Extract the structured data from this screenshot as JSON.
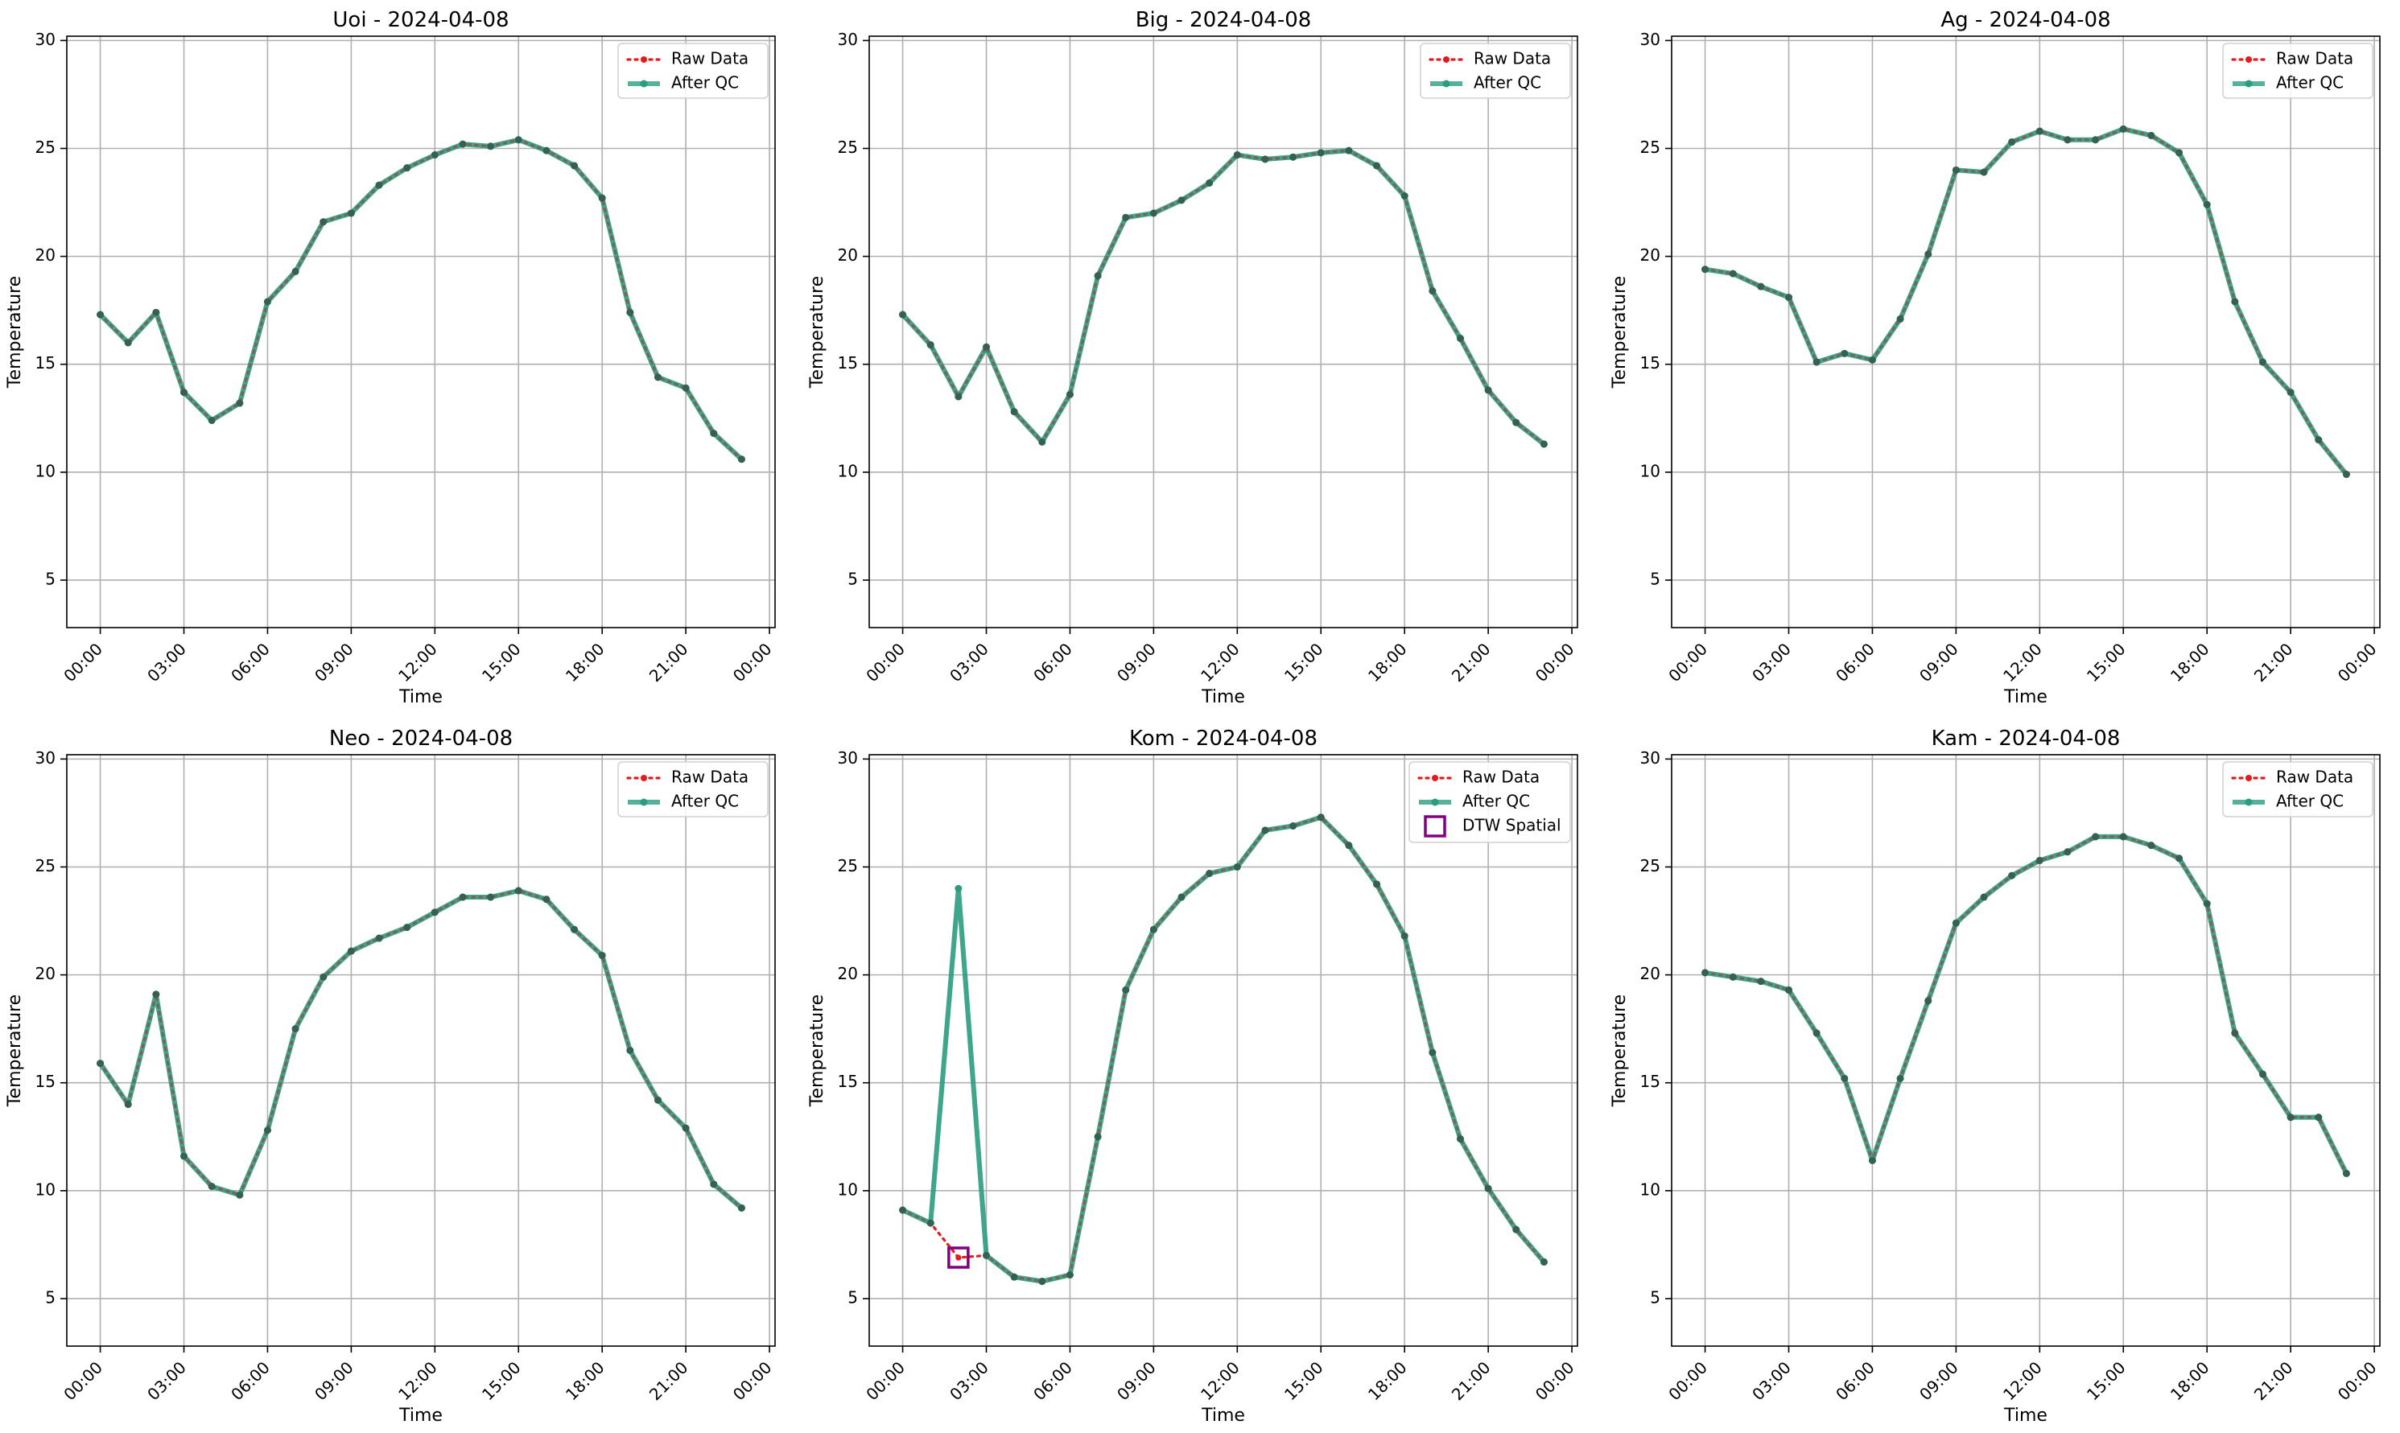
{
  "colors": {
    "raw": "#e41a1c",
    "qc": "#2a9d7f",
    "dtw": "#800080",
    "grid": "#b0b0b0"
  },
  "legend_labels": {
    "raw": "Raw Data",
    "qc": "After QC",
    "dtw": "DTW Spatial"
  },
  "chart_data": [
    {
      "type": "line",
      "title": "Uoi - 2024-04-08",
      "xlabel": "Time",
      "ylabel": "Temperature",
      "ylim": [
        2.8,
        30.2
      ],
      "xlim": [
        -1.2,
        24.2
      ],
      "x_ticks": [
        0,
        3,
        6,
        9,
        12,
        15,
        18,
        21,
        24
      ],
      "x_tick_labels": [
        "00:00",
        "03:00",
        "06:00",
        "09:00",
        "12:00",
        "15:00",
        "18:00",
        "21:00",
        "00:00"
      ],
      "y_ticks": [
        5,
        10,
        15,
        20,
        25,
        30
      ],
      "grid": true,
      "legend": "top-right",
      "x": [
        0,
        1,
        2,
        3,
        4,
        5,
        6,
        7,
        8,
        9,
        10,
        11,
        12,
        13,
        14,
        15,
        16,
        17,
        18,
        19,
        20,
        21,
        22,
        23
      ],
      "series": [
        {
          "name": "Raw Data",
          "values": [
            17.3,
            16.0,
            17.4,
            13.7,
            12.4,
            13.2,
            17.9,
            19.3,
            21.6,
            22.0,
            23.3,
            24.1,
            24.7,
            25.2,
            25.1,
            25.4,
            24.9,
            24.2,
            22.7,
            17.4,
            14.4,
            13.9,
            11.8,
            10.6
          ]
        },
        {
          "name": "After QC",
          "values": [
            17.3,
            16.0,
            17.4,
            13.7,
            12.4,
            13.2,
            17.9,
            19.3,
            21.6,
            22.0,
            23.3,
            24.1,
            24.7,
            25.2,
            25.1,
            25.4,
            24.9,
            24.2,
            22.7,
            17.4,
            14.4,
            13.9,
            11.8,
            10.6
          ]
        }
      ]
    },
    {
      "type": "line",
      "title": "Big - 2024-04-08",
      "xlabel": "Time",
      "ylabel": "Temperature",
      "ylim": [
        2.8,
        30.2
      ],
      "xlim": [
        -1.2,
        24.2
      ],
      "x_ticks": [
        0,
        3,
        6,
        9,
        12,
        15,
        18,
        21,
        24
      ],
      "x_tick_labels": [
        "00:00",
        "03:00",
        "06:00",
        "09:00",
        "12:00",
        "15:00",
        "18:00",
        "21:00",
        "00:00"
      ],
      "y_ticks": [
        5,
        10,
        15,
        20,
        25,
        30
      ],
      "grid": true,
      "legend": "top-right",
      "x": [
        0,
        1,
        2,
        3,
        4,
        5,
        6,
        7,
        8,
        9,
        10,
        11,
        12,
        13,
        14,
        15,
        16,
        17,
        18,
        19,
        20,
        21,
        22,
        23
      ],
      "series": [
        {
          "name": "Raw Data",
          "values": [
            17.3,
            15.9,
            13.5,
            15.8,
            12.8,
            11.4,
            13.6,
            19.1,
            21.8,
            22.0,
            22.6,
            23.4,
            24.7,
            24.5,
            24.6,
            24.8,
            24.9,
            24.2,
            22.8,
            18.4,
            16.2,
            13.8,
            12.3,
            11.3
          ]
        },
        {
          "name": "After QC",
          "values": [
            17.3,
            15.9,
            13.5,
            15.8,
            12.8,
            11.4,
            13.6,
            19.1,
            21.8,
            22.0,
            22.6,
            23.4,
            24.7,
            24.5,
            24.6,
            24.8,
            24.9,
            24.2,
            22.8,
            18.4,
            16.2,
            13.8,
            12.3,
            11.3
          ]
        }
      ]
    },
    {
      "type": "line",
      "title": "Ag - 2024-04-08",
      "xlabel": "Time",
      "ylabel": "Temperature",
      "ylim": [
        2.8,
        30.2
      ],
      "xlim": [
        -1.2,
        24.2
      ],
      "x_ticks": [
        0,
        3,
        6,
        9,
        12,
        15,
        18,
        21,
        24
      ],
      "x_tick_labels": [
        "00:00",
        "03:00",
        "06:00",
        "09:00",
        "12:00",
        "15:00",
        "18:00",
        "21:00",
        "00:00"
      ],
      "y_ticks": [
        5,
        10,
        15,
        20,
        25,
        30
      ],
      "grid": true,
      "legend": "top-right",
      "x": [
        0,
        1,
        2,
        3,
        4,
        5,
        6,
        7,
        8,
        9,
        10,
        11,
        12,
        13,
        14,
        15,
        16,
        17,
        18,
        19,
        20,
        21,
        22,
        23
      ],
      "series": [
        {
          "name": "Raw Data",
          "values": [
            19.4,
            19.2,
            18.6,
            18.1,
            15.1,
            15.5,
            15.2,
            17.1,
            20.1,
            24.0,
            23.9,
            25.3,
            25.8,
            25.4,
            25.4,
            25.9,
            25.6,
            24.8,
            22.4,
            17.9,
            15.1,
            13.7,
            11.5,
            9.9
          ]
        },
        {
          "name": "After QC",
          "values": [
            19.4,
            19.2,
            18.6,
            18.1,
            15.1,
            15.5,
            15.2,
            17.1,
            20.1,
            24.0,
            23.9,
            25.3,
            25.8,
            25.4,
            25.4,
            25.9,
            25.6,
            24.8,
            22.4,
            17.9,
            15.1,
            13.7,
            11.5,
            9.9
          ]
        }
      ]
    },
    {
      "type": "line",
      "title": "Neo - 2024-04-08",
      "xlabel": "Time",
      "ylabel": "Temperature",
      "ylim": [
        2.8,
        30.2
      ],
      "xlim": [
        -1.2,
        24.2
      ],
      "x_ticks": [
        0,
        3,
        6,
        9,
        12,
        15,
        18,
        21,
        24
      ],
      "x_tick_labels": [
        "00:00",
        "03:00",
        "06:00",
        "09:00",
        "12:00",
        "15:00",
        "18:00",
        "21:00",
        "00:00"
      ],
      "y_ticks": [
        5,
        10,
        15,
        20,
        25,
        30
      ],
      "grid": true,
      "legend": "top-right",
      "x": [
        0,
        1,
        2,
        3,
        4,
        5,
        6,
        7,
        8,
        9,
        10,
        11,
        12,
        13,
        14,
        15,
        16,
        17,
        18,
        19,
        20,
        21,
        22,
        23
      ],
      "series": [
        {
          "name": "Raw Data",
          "values": [
            15.9,
            14.0,
            19.1,
            11.6,
            10.2,
            9.8,
            12.8,
            17.5,
            19.9,
            21.1,
            21.7,
            22.2,
            22.9,
            23.6,
            23.6,
            23.9,
            23.5,
            22.1,
            20.9,
            16.5,
            14.2,
            12.9,
            10.3,
            9.2
          ]
        },
        {
          "name": "After QC",
          "values": [
            15.9,
            14.0,
            19.1,
            11.6,
            10.2,
            9.8,
            12.8,
            17.5,
            19.9,
            21.1,
            21.7,
            22.2,
            22.9,
            23.6,
            23.6,
            23.9,
            23.5,
            22.1,
            20.9,
            16.5,
            14.2,
            12.9,
            10.3,
            9.2
          ]
        }
      ]
    },
    {
      "type": "line",
      "title": "Kom - 2024-04-08",
      "xlabel": "Time",
      "ylabel": "Temperature",
      "ylim": [
        2.8,
        30.2
      ],
      "xlim": [
        -1.2,
        24.2
      ],
      "x_ticks": [
        0,
        3,
        6,
        9,
        12,
        15,
        18,
        21,
        24
      ],
      "x_tick_labels": [
        "00:00",
        "03:00",
        "06:00",
        "09:00",
        "12:00",
        "15:00",
        "18:00",
        "21:00",
        "00:00"
      ],
      "y_ticks": [
        5,
        10,
        15,
        20,
        25,
        30
      ],
      "grid": true,
      "legend": "top-right",
      "x": [
        0,
        1,
        2,
        3,
        4,
        5,
        6,
        7,
        8,
        9,
        10,
        11,
        12,
        13,
        14,
        15,
        16,
        17,
        18,
        19,
        20,
        21,
        22,
        23
      ],
      "series": [
        {
          "name": "Raw Data",
          "values": [
            9.1,
            8.5,
            6.9,
            7.0,
            6.0,
            5.8,
            6.1,
            12.5,
            19.3,
            22.1,
            23.6,
            24.7,
            25.0,
            26.7,
            26.9,
            27.3,
            26.0,
            24.2,
            21.8,
            16.4,
            12.4,
            10.1,
            8.2,
            6.7
          ]
        },
        {
          "name": "After QC",
          "values": [
            9.1,
            8.5,
            24.0,
            7.0,
            6.0,
            5.8,
            6.1,
            12.5,
            19.3,
            22.1,
            23.6,
            24.7,
            25.0,
            26.7,
            26.9,
            27.3,
            26.0,
            24.2,
            21.8,
            16.4,
            12.4,
            10.1,
            8.2,
            6.7
          ]
        }
      ],
      "flags": [
        {
          "name": "DTW Spatial",
          "x": 2,
          "y": 6.9
        }
      ]
    },
    {
      "type": "line",
      "title": "Kam - 2024-04-08",
      "xlabel": "Time",
      "ylabel": "Temperature",
      "ylim": [
        2.8,
        30.2
      ],
      "xlim": [
        -1.2,
        24.2
      ],
      "x_ticks": [
        0,
        3,
        6,
        9,
        12,
        15,
        18,
        21,
        24
      ],
      "x_tick_labels": [
        "00:00",
        "03:00",
        "06:00",
        "09:00",
        "12:00",
        "15:00",
        "18:00",
        "21:00",
        "00:00"
      ],
      "y_ticks": [
        5,
        10,
        15,
        20,
        25,
        30
      ],
      "grid": true,
      "legend": "top-right",
      "x": [
        0,
        1,
        2,
        3,
        4,
        5,
        6,
        7,
        8,
        9,
        10,
        11,
        12,
        13,
        14,
        15,
        16,
        17,
        18,
        19,
        20,
        21,
        22,
        23
      ],
      "series": [
        {
          "name": "Raw Data",
          "values": [
            20.1,
            19.9,
            19.7,
            19.3,
            17.3,
            15.2,
            11.4,
            15.2,
            18.8,
            22.4,
            23.6,
            24.6,
            25.3,
            25.7,
            26.4,
            26.4,
            26.0,
            25.4,
            23.3,
            17.3,
            15.4,
            13.4,
            13.4,
            10.8
          ]
        },
        {
          "name": "After QC",
          "values": [
            20.1,
            19.9,
            19.7,
            19.3,
            17.3,
            15.2,
            11.4,
            15.2,
            18.8,
            22.4,
            23.6,
            24.6,
            25.3,
            25.7,
            26.4,
            26.4,
            26.0,
            25.4,
            23.3,
            17.3,
            15.4,
            13.4,
            13.4,
            10.8
          ]
        }
      ]
    }
  ]
}
